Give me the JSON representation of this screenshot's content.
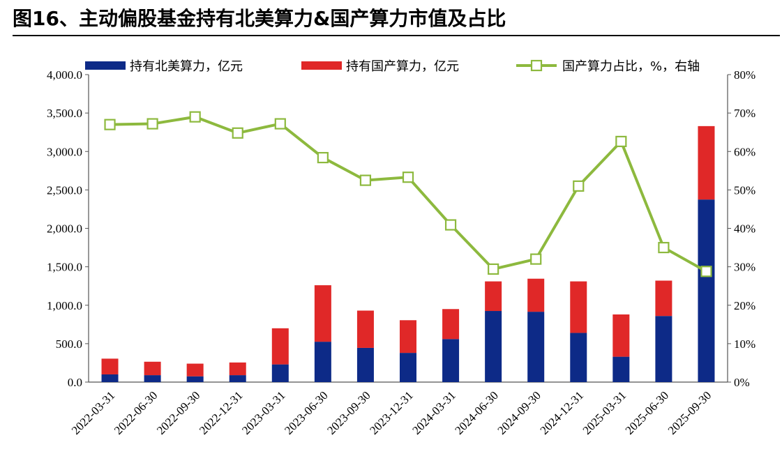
{
  "title": "图16、主动偏股基金持有北美算力&国产算力市值及占比",
  "chart_data": {
    "type": "bar",
    "stacked": true,
    "categories": [
      "2022-03-31",
      "2022-06-30",
      "2022-09-30",
      "2022-12-31",
      "2023-03-31",
      "2023-06-30",
      "2023-09-30",
      "2023-12-31",
      "2024-03-31",
      "2024-06-30",
      "2024-09-30",
      "2024-12-31",
      "2025-03-31",
      "2025-06-30",
      "2025-09-30"
    ],
    "series": [
      {
        "name": "持有北美算力，亿元",
        "type": "bar",
        "axis": "left",
        "color": "#0d2a87",
        "values": [
          100,
          90,
          75,
          90,
          230,
          525,
          445,
          380,
          560,
          925,
          915,
          640,
          330,
          860,
          2375
        ]
      },
      {
        "name": "持有国产算力，亿元",
        "type": "bar",
        "axis": "left",
        "color": "#e02828",
        "values": [
          205,
          175,
          165,
          165,
          470,
          735,
          485,
          425,
          390,
          385,
          430,
          670,
          550,
          460,
          955
        ]
      },
      {
        "name": "国产算力占比，%，右轴",
        "type": "line",
        "axis": "right",
        "color": "#8db93e",
        "values": [
          67,
          67.2,
          69,
          64.8,
          67.2,
          58.4,
          52.5,
          53.3,
          40.9,
          29.4,
          32.0,
          51.0,
          62.6,
          35.0,
          28.8
        ]
      }
    ],
    "ylim": [
      0,
      4000
    ],
    "y_ticks": [
      "0.0",
      "500.0",
      "1,000.0",
      "1,500.0",
      "2,000.0",
      "2,500.0",
      "3,000.0",
      "3,500.0",
      "4,000.0"
    ],
    "y2lim": [
      0,
      80
    ],
    "y2_ticks": [
      "0%",
      "10%",
      "20%",
      "30%",
      "40%",
      "50%",
      "60%",
      "70%",
      "80%"
    ],
    "xlabel": "",
    "ylabel": "",
    "legend_position": "top",
    "grid": false
  }
}
